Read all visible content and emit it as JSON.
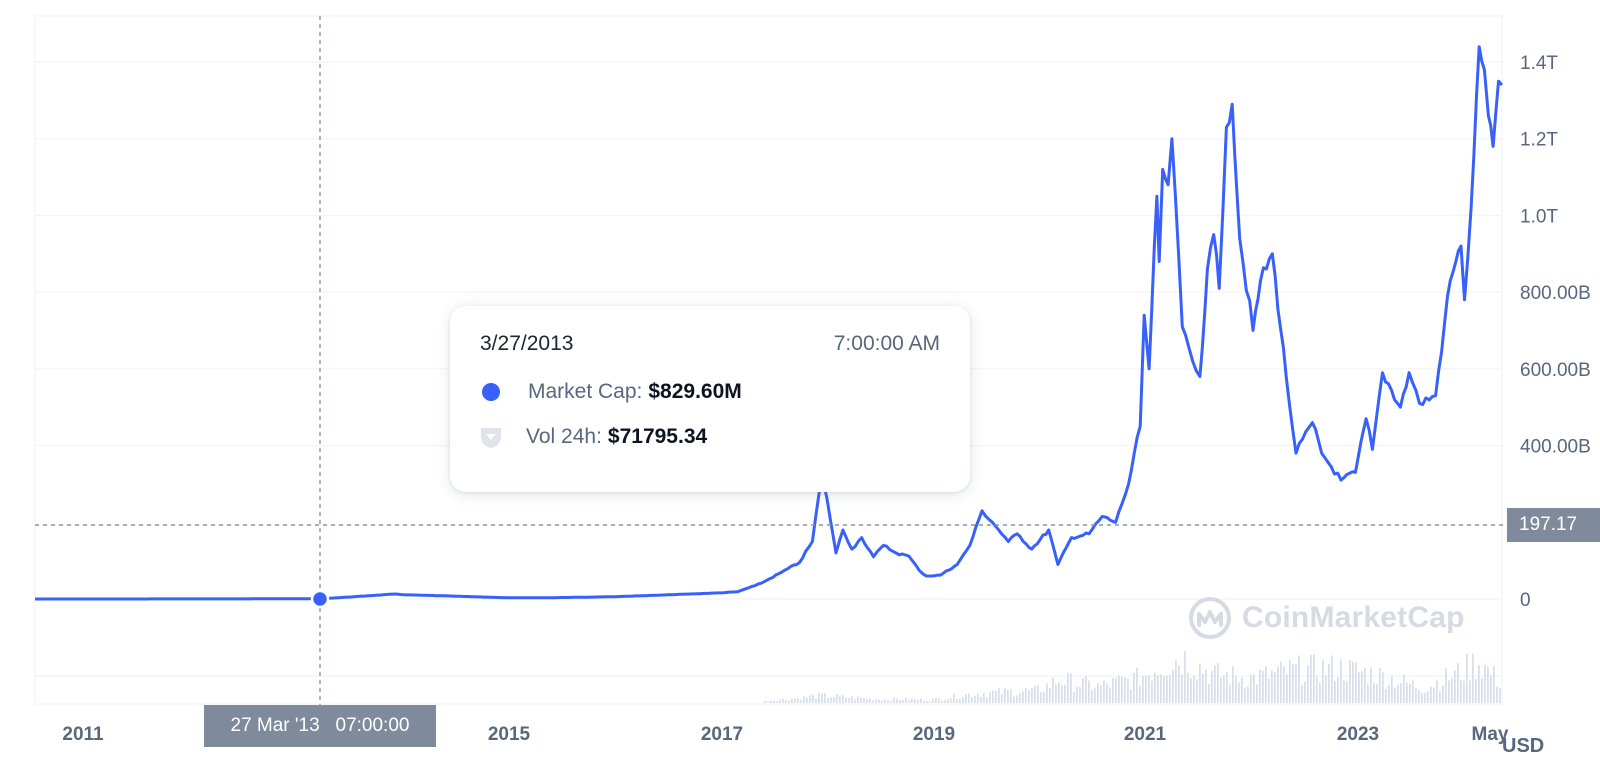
{
  "chart_data": {
    "type": "line",
    "title": "",
    "xlabel": "",
    "ylabel": "",
    "currency": "USD",
    "x_ticks": [
      "2011",
      "2015",
      "2017",
      "2019",
      "2021",
      "2023",
      "May"
    ],
    "y_ticks": [
      "1.4T",
      "1.2T",
      "1.0T",
      "800.00B",
      "600.00B",
      "400.00B",
      "0"
    ],
    "ylim": [
      0,
      1400000000000
    ],
    "xlim": [
      "2010-07",
      "2024-06"
    ],
    "grid": true,
    "series": [
      {
        "color": "#3861fb",
        "points": [
          [
            "2010-07-01",
            0
          ],
          [
            "2011-06-01",
            0.1
          ],
          [
            "2012-06-01",
            0.3
          ],
          [
            "2013-03-27",
            0.83
          ],
          [
            "2013-12-01",
            13
          ],
          [
            "2014-01-01",
            11
          ],
          [
            "2014-06-01",
            8
          ],
          [
            "2015-01-01",
            3
          ],
          [
            "2015-06-01",
            3.5
          ],
          [
            "2016-01-01",
            6
          ],
          [
            "2016-06-01",
            10
          ],
          [
            "2017-01-01",
            16
          ],
          [
            "2017-03-01",
            19
          ],
          [
            "2017-05-01",
            35
          ],
          [
            "2017-06-01",
            45
          ],
          [
            "2017-08-01",
            70
          ],
          [
            "2017-10-01",
            95
          ],
          [
            "2017-11-15",
            150
          ],
          [
            "2017-12-17",
            320
          ],
          [
            "2018-01-05",
            260
          ],
          [
            "2018-02-05",
            120
          ],
          [
            "2018-03-01",
            180
          ],
          [
            "2018-04-01",
            130
          ],
          [
            "2018-05-05",
            160
          ],
          [
            "2018-06-15",
            110
          ],
          [
            "2018-07-20",
            140
          ],
          [
            "2018-09-01",
            120
          ],
          [
            "2018-10-15",
            112
          ],
          [
            "2018-11-20",
            75
          ],
          [
            "2018-12-15",
            60
          ],
          [
            "2019-02-01",
            62
          ],
          [
            "2019-04-01",
            90
          ],
          [
            "2019-05-15",
            140
          ],
          [
            "2019-06-26",
            230
          ],
          [
            "2019-08-01",
            200
          ],
          [
            "2019-09-25",
            150
          ],
          [
            "2019-10-26",
            170
          ],
          [
            "2019-12-15",
            130
          ],
          [
            "2020-02-12",
            180
          ],
          [
            "2020-03-15",
            90
          ],
          [
            "2020-05-01",
            160
          ],
          [
            "2020-07-01",
            170
          ],
          [
            "2020-08-15",
            215
          ],
          [
            "2020-10-01",
            200
          ],
          [
            "2020-11-15",
            300
          ],
          [
            "2020-12-25",
            450
          ],
          [
            "2021-01-08",
            740
          ],
          [
            "2021-01-25",
            600
          ],
          [
            "2021-02-21",
            1050
          ],
          [
            "2021-03-01",
            880
          ],
          [
            "2021-03-13",
            1120
          ],
          [
            "2021-04-01",
            1080
          ],
          [
            "2021-04-14",
            1200
          ],
          [
            "2021-05-20",
            710
          ],
          [
            "2021-06-25",
            620
          ],
          [
            "2021-07-20",
            580
          ],
          [
            "2021-08-15",
            860
          ],
          [
            "2021-09-06",
            950
          ],
          [
            "2021-09-25",
            810
          ],
          [
            "2021-10-20",
            1230
          ],
          [
            "2021-11-09",
            1290
          ],
          [
            "2021-12-05",
            940
          ],
          [
            "2022-01-20",
            700
          ],
          [
            "2022-02-15",
            830
          ],
          [
            "2022-03-28",
            900
          ],
          [
            "2022-05-15",
            580
          ],
          [
            "2022-06-18",
            380
          ],
          [
            "2022-08-14",
            460
          ],
          [
            "2022-09-15",
            380
          ],
          [
            "2022-11-21",
            310
          ],
          [
            "2023-01-10",
            330
          ],
          [
            "2023-02-16",
            470
          ],
          [
            "2023-03-10",
            390
          ],
          [
            "2023-04-14",
            590
          ],
          [
            "2023-06-15",
            500
          ],
          [
            "2023-07-15",
            590
          ],
          [
            "2023-08-20",
            510
          ],
          [
            "2023-10-15",
            530
          ],
          [
            "2023-11-15",
            720
          ],
          [
            "2023-12-05",
            830
          ],
          [
            "2024-01-11",
            920
          ],
          [
            "2024-01-23",
            780
          ],
          [
            "2024-02-15",
            1020
          ],
          [
            "2024-03-14",
            1440
          ],
          [
            "2024-04-01",
            1380
          ],
          [
            "2024-04-15",
            1260
          ],
          [
            "2024-05-01",
            1180
          ],
          [
            "2024-05-20",
            1350
          ],
          [
            "2024-06-01",
            1340
          ]
        ],
        "y_unit": "B"
      }
    ],
    "volume_series": {
      "color": "#cfd6e4",
      "note_unit": "relative",
      "points": [
        [
          "2017-06-01",
          2
        ],
        [
          "2017-12-15",
          9
        ],
        [
          "2018-06-01",
          5
        ],
        [
          "2019-01-01",
          4
        ],
        [
          "2019-06-15",
          12
        ],
        [
          "2020-01-01",
          15
        ],
        [
          "2020-03-15",
          28
        ],
        [
          "2020-08-01",
          20
        ],
        [
          "2020-12-15",
          30
        ],
        [
          "2021-03-01",
          45
        ],
        [
          "2021-05-20",
          55
        ],
        [
          "2021-09-01",
          35
        ],
        [
          "2022-01-15",
          30
        ],
        [
          "2022-06-15",
          40
        ],
        [
          "2022-11-10",
          42
        ],
        [
          "2023-03-15",
          35
        ],
        [
          "2023-09-01",
          18
        ],
        [
          "2024-01-10",
          38
        ],
        [
          "2024-03-10",
          50
        ],
        [
          "2024-06-01",
          22
        ]
      ]
    },
    "crosshair": {
      "x_label": "27 Mar '13   07:00:00",
      "y_label": "197.17"
    }
  },
  "tooltip": {
    "date": "3/27/2013",
    "time": "7:00:00 AM",
    "market_cap_label": "Market Cap:",
    "market_cap_value": "$829.60M",
    "vol_label": "Vol 24h:",
    "vol_value": "$71795.34"
  },
  "watermark": {
    "text": "CoinMarketCap"
  },
  "icons": {
    "market_cap": "dot-icon",
    "volume": "shield-icon",
    "watermark": "coinmarketcap-logo-icon"
  },
  "colors": {
    "line": "#3861fb",
    "grid": "#eff2f5",
    "axis_text": "#58667e",
    "crosshair_label": "#808a9d"
  }
}
